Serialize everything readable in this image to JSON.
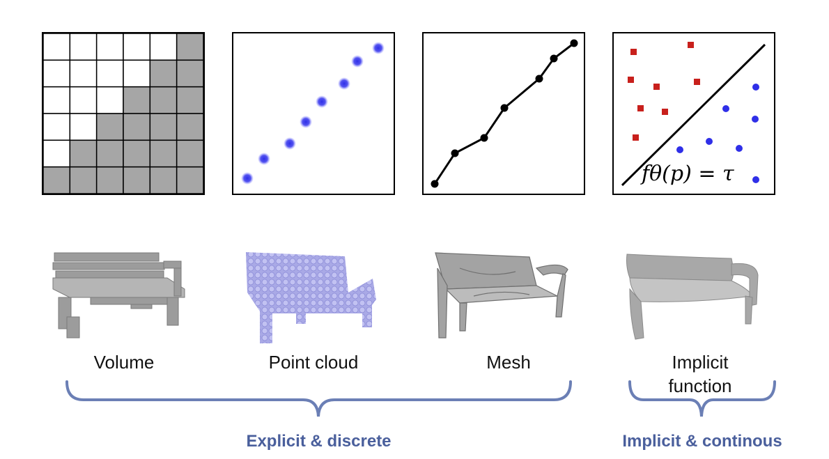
{
  "representations": [
    {
      "key": "volume",
      "label": "Volume"
    },
    {
      "key": "point_cloud",
      "label": "Point cloud"
    },
    {
      "key": "mesh",
      "label": "Mesh"
    },
    {
      "key": "implicit",
      "label_line1": "Implicit",
      "label_line2": "function"
    }
  ],
  "formula": "fθ(p) = τ",
  "groups": [
    {
      "label": "Explicit & discrete"
    },
    {
      "label": "Implicit & continous"
    }
  ],
  "colors": {
    "grid_fill": "#a6a6a6",
    "point_blue": "#2f2fe8",
    "square_red": "#c8201c",
    "brace": "#6b7fb5",
    "group_text": "#4a5f9c",
    "bench_gray": "#9a9a9a",
    "bench_cloud": "#a9a9e6"
  }
}
